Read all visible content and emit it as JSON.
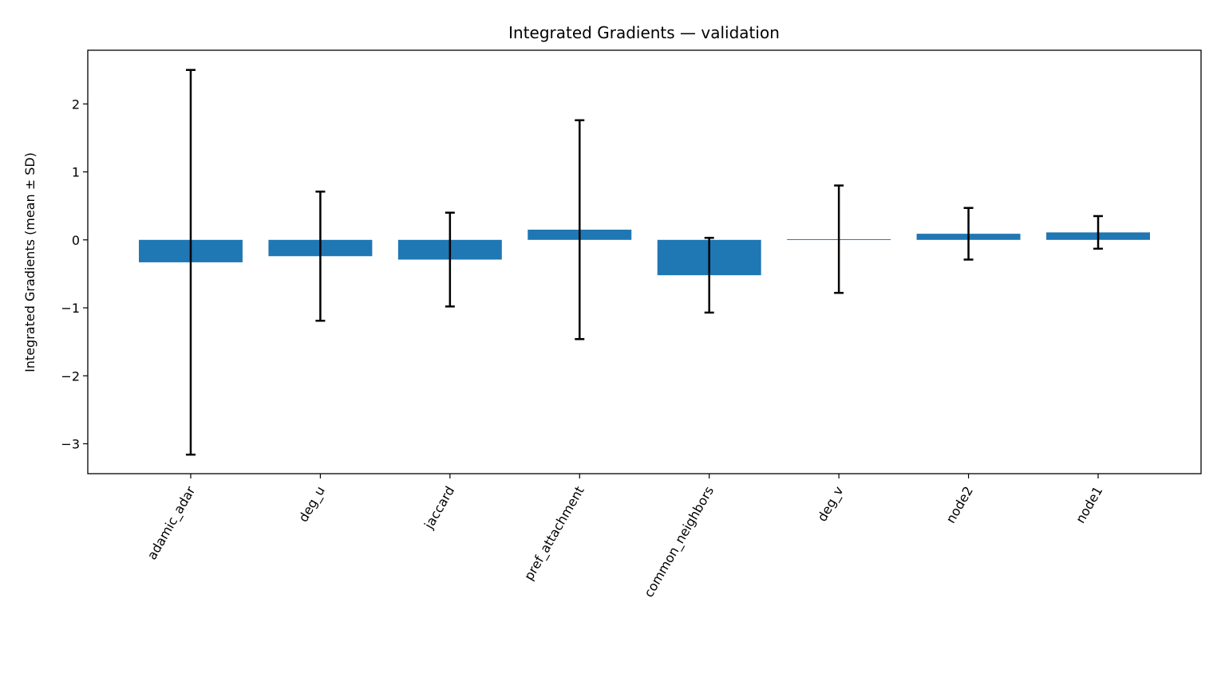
{
  "chart_data": {
    "type": "bar",
    "title": "Integrated Gradients — validation",
    "xlabel": "",
    "ylabel": "Integrated Gradients (mean ± SD)",
    "categories": [
      "adamic_adar",
      "deg_u",
      "jaccard",
      "pref_attachment",
      "common_neighbors",
      "deg_v",
      "node2",
      "node1"
    ],
    "values": [
      -0.33,
      -0.24,
      -0.29,
      0.15,
      -0.52,
      0.01,
      0.09,
      0.11
    ],
    "errors": [
      2.83,
      0.95,
      0.69,
      1.61,
      0.55,
      0.79,
      0.38,
      0.24
    ],
    "ylim": [
      -3.44,
      2.79
    ],
    "yticks": [
      -3,
      -2,
      -1,
      0,
      1,
      2
    ],
    "ytick_labels": [
      "−3",
      "−2",
      "−1",
      "0",
      "1",
      "2"
    ],
    "grid": false,
    "legend": "none",
    "bar_color": "#1f77b4",
    "error_color": "#000000"
  }
}
